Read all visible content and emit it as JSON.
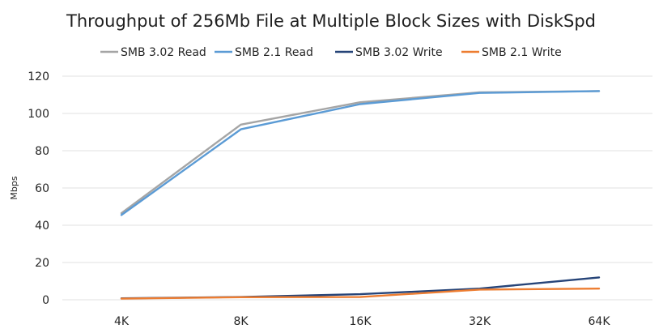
{
  "chart_data": {
    "type": "line",
    "title": "Throughput of 256Mb File at Multiple Block Sizes with DiskSpd",
    "xlabel": "",
    "ylabel": "Mbps",
    "categories": [
      "4K",
      "8K",
      "16K",
      "32K",
      "64K"
    ],
    "ylim": [
      0,
      120
    ],
    "yticks": [
      0,
      20,
      40,
      60,
      80,
      100,
      120
    ],
    "grid": true,
    "legend_position": "top",
    "series": [
      {
        "name": "SMB 3.02 Read",
        "color": "#a5a5a5",
        "values": [
          46.5,
          94,
          106,
          111.3,
          112
        ]
      },
      {
        "name": "SMB 2.1 Read",
        "color": "#5b9bd5",
        "values": [
          45.5,
          91.5,
          105,
          111,
          112
        ]
      },
      {
        "name": "SMB 3.02 Write",
        "color": "#264478",
        "values": [
          0.8,
          1.5,
          3,
          6,
          12
        ]
      },
      {
        "name": "SMB 2.1 Write",
        "color": "#ed7d31",
        "values": [
          0.6,
          1.4,
          1.5,
          5.5,
          6
        ]
      }
    ]
  }
}
